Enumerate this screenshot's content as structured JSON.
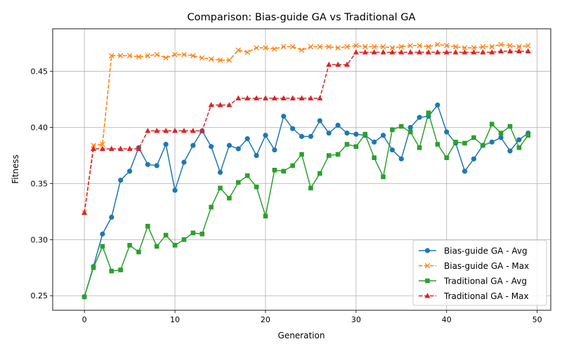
{
  "chart_data": {
    "type": "line",
    "title": "Comparison: Bias-guide GA vs Traditional GA",
    "xlabel": "Generation",
    "ylabel": "Fitness",
    "xlim": [
      -3.5,
      51.5
    ],
    "ylim": [
      0.237,
      0.488
    ],
    "xticks": [
      0,
      10,
      20,
      30,
      40,
      50
    ],
    "yticks": [
      0.25,
      0.3,
      0.35,
      0.4,
      0.45
    ],
    "ytick_labels": [
      "0.25",
      "0.30",
      "0.35",
      "0.40",
      "0.45"
    ],
    "grid": true,
    "legend_position": "lower-right",
    "x": [
      0,
      1,
      2,
      3,
      4,
      5,
      6,
      7,
      8,
      9,
      10,
      11,
      12,
      13,
      14,
      15,
      16,
      17,
      18,
      19,
      20,
      21,
      22,
      23,
      24,
      25,
      26,
      27,
      28,
      29,
      30,
      31,
      32,
      33,
      34,
      35,
      36,
      37,
      38,
      39,
      40,
      41,
      42,
      43,
      44,
      45,
      46,
      47,
      48,
      49
    ],
    "series": [
      {
        "name": "Bias-guide GA - Avg",
        "color": "#1f77b4",
        "dashed": false,
        "marker": "circle",
        "values": [
          0.249,
          0.276,
          0.305,
          0.32,
          0.353,
          0.361,
          0.382,
          0.367,
          0.366,
          0.385,
          0.344,
          0.369,
          0.384,
          0.397,
          0.383,
          0.36,
          0.384,
          0.381,
          0.39,
          0.375,
          0.393,
          0.38,
          0.41,
          0.399,
          0.392,
          0.392,
          0.406,
          0.395,
          0.402,
          0.395,
          0.394,
          0.393,
          0.387,
          0.393,
          0.38,
          0.372,
          0.4,
          0.409,
          0.41,
          0.42,
          0.396,
          0.386,
          0.361,
          0.372,
          0.384,
          0.387,
          0.391,
          0.379,
          0.389,
          0.395
        ]
      },
      {
        "name": "Bias-guide GA - Max",
        "color": "#ff7f0e",
        "dashed": true,
        "marker": "x",
        "values": [
          0.324,
          0.384,
          0.385,
          0.464,
          0.464,
          0.464,
          0.463,
          0.464,
          0.465,
          0.462,
          0.465,
          0.465,
          0.464,
          0.462,
          0.461,
          0.46,
          0.46,
          0.469,
          0.467,
          0.471,
          0.471,
          0.47,
          0.472,
          0.472,
          0.469,
          0.472,
          0.472,
          0.472,
          0.471,
          0.472,
          0.473,
          0.472,
          0.472,
          0.472,
          0.471,
          0.472,
          0.473,
          0.473,
          0.472,
          0.474,
          0.473,
          0.472,
          0.471,
          0.471,
          0.472,
          0.472,
          0.474,
          0.473,
          0.472,
          0.473
        ]
      },
      {
        "name": "Traditional GA - Avg",
        "color": "#2ca02c",
        "dashed": false,
        "marker": "square",
        "values": [
          0.249,
          0.275,
          0.294,
          0.272,
          0.273,
          0.295,
          0.289,
          0.312,
          0.294,
          0.304,
          0.295,
          0.3,
          0.306,
          0.305,
          0.329,
          0.346,
          0.337,
          0.351,
          0.357,
          0.347,
          0.321,
          0.362,
          0.361,
          0.366,
          0.376,
          0.346,
          0.359,
          0.375,
          0.376,
          0.385,
          0.383,
          0.394,
          0.373,
          0.356,
          0.398,
          0.401,
          0.396,
          0.382,
          0.413,
          0.385,
          0.373,
          0.387,
          0.386,
          0.391,
          0.384,
          0.403,
          0.395,
          0.401,
          0.382,
          0.393
        ]
      },
      {
        "name": "Traditional GA - Max",
        "color": "#d62728",
        "dashed": true,
        "marker": "triangle",
        "values": [
          0.324,
          0.381,
          0.381,
          0.381,
          0.381,
          0.381,
          0.381,
          0.397,
          0.397,
          0.397,
          0.397,
          0.397,
          0.397,
          0.397,
          0.42,
          0.42,
          0.42,
          0.426,
          0.426,
          0.426,
          0.426,
          0.426,
          0.426,
          0.426,
          0.426,
          0.426,
          0.426,
          0.456,
          0.456,
          0.456,
          0.467,
          0.467,
          0.467,
          0.467,
          0.467,
          0.467,
          0.467,
          0.467,
          0.467,
          0.467,
          0.467,
          0.467,
          0.467,
          0.467,
          0.467,
          0.467,
          0.468,
          0.468,
          0.468,
          0.468
        ]
      }
    ]
  }
}
